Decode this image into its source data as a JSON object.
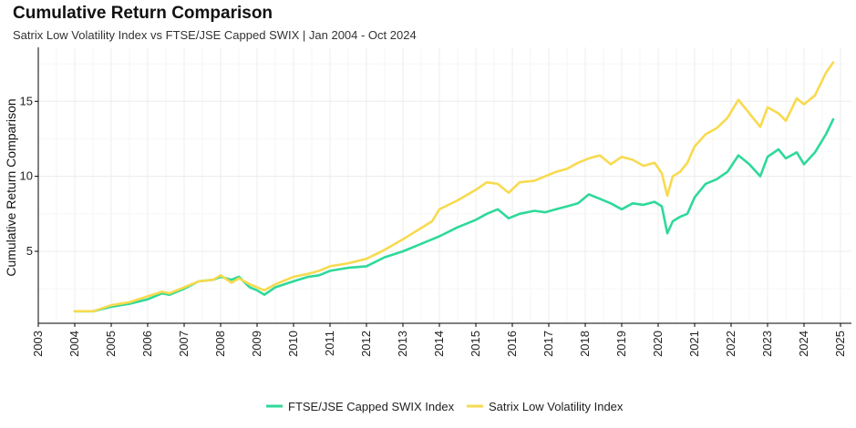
{
  "chart_data": {
    "type": "line",
    "title": "Cumulative Return Comparison",
    "subtitle": "Satrix Low Volatility Index vs FTSE/JSE Capped SWIX | Jan 2004 - Oct 2024",
    "xlabel": "",
    "ylabel": "Cumulative Return Comparison",
    "xlim": [
      2003,
      2025.3
    ],
    "ylim": [
      0.2,
      18.6
    ],
    "x_ticks": [
      "2003",
      "2004",
      "2005",
      "2006",
      "2007",
      "2008",
      "2009",
      "2010",
      "2011",
      "2012",
      "2013",
      "2014",
      "2015",
      "2016",
      "2017",
      "2018",
      "2019",
      "2020",
      "2021",
      "2022",
      "2023",
      "2024",
      "2025"
    ],
    "y_ticks": [
      "5",
      "10",
      "15"
    ],
    "grid": true,
    "legend_position": "bottom",
    "series": [
      {
        "name": "FTSE/JSE Capped SWIX Index",
        "color": "#2ed99a",
        "x": [
          2004.0,
          2004.5,
          2005.0,
          2005.5,
          2006.0,
          2006.4,
          2006.6,
          2007.0,
          2007.4,
          2007.8,
          2008.0,
          2008.3,
          2008.5,
          2008.8,
          2009.0,
          2009.2,
          2009.5,
          2010.0,
          2010.4,
          2010.7,
          2011.0,
          2011.5,
          2012.0,
          2012.5,
          2013.0,
          2013.4,
          2013.8,
          2014.0,
          2014.5,
          2015.0,
          2015.3,
          2015.6,
          2015.9,
          2016.2,
          2016.6,
          2016.9,
          2017.2,
          2017.5,
          2017.8,
          2018.1,
          2018.4,
          2018.7,
          2019.0,
          2019.3,
          2019.6,
          2019.9,
          2020.1,
          2020.25,
          2020.4,
          2020.6,
          2020.8,
          2021.0,
          2021.3,
          2021.6,
          2021.9,
          2022.2,
          2022.5,
          2022.8,
          2023.0,
          2023.3,
          2023.5,
          2023.8,
          2024.0,
          2024.3,
          2024.6,
          2024.8
        ],
        "values": [
          1.0,
          1.0,
          1.3,
          1.5,
          1.8,
          2.2,
          2.1,
          2.5,
          3.0,
          3.1,
          3.3,
          3.1,
          3.3,
          2.6,
          2.4,
          2.1,
          2.6,
          3.0,
          3.3,
          3.4,
          3.7,
          3.9,
          4.0,
          4.6,
          5.0,
          5.4,
          5.8,
          6.0,
          6.6,
          7.1,
          7.5,
          7.8,
          7.2,
          7.5,
          7.7,
          7.6,
          7.8,
          8.0,
          8.2,
          8.8,
          8.5,
          8.2,
          7.8,
          8.2,
          8.1,
          8.3,
          8.0,
          6.2,
          7.0,
          7.3,
          7.5,
          8.6,
          9.5,
          9.8,
          10.3,
          11.4,
          10.8,
          10.0,
          11.3,
          11.8,
          11.2,
          11.6,
          10.8,
          11.6,
          12.8,
          13.8
        ]
      },
      {
        "name": "Satrix Low Volatility Index",
        "color": "#f8da4e",
        "x": [
          2004.0,
          2004.5,
          2005.0,
          2005.5,
          2006.0,
          2006.4,
          2006.6,
          2007.0,
          2007.4,
          2007.8,
          2008.0,
          2008.3,
          2008.5,
          2008.8,
          2009.0,
          2009.2,
          2009.5,
          2010.0,
          2010.4,
          2010.7,
          2011.0,
          2011.5,
          2012.0,
          2012.5,
          2013.0,
          2013.4,
          2013.8,
          2014.0,
          2014.5,
          2015.0,
          2015.3,
          2015.6,
          2015.9,
          2016.2,
          2016.6,
          2016.9,
          2017.2,
          2017.5,
          2017.8,
          2018.1,
          2018.4,
          2018.7,
          2019.0,
          2019.3,
          2019.6,
          2019.9,
          2020.1,
          2020.25,
          2020.4,
          2020.6,
          2020.8,
          2021.0,
          2021.3,
          2021.6,
          2021.9,
          2022.2,
          2022.5,
          2022.8,
          2023.0,
          2023.3,
          2023.5,
          2023.8,
          2024.0,
          2024.3,
          2024.6,
          2024.8
        ],
        "values": [
          1.0,
          1.0,
          1.4,
          1.6,
          2.0,
          2.3,
          2.2,
          2.6,
          3.0,
          3.1,
          3.4,
          2.9,
          3.2,
          2.8,
          2.6,
          2.4,
          2.8,
          3.3,
          3.5,
          3.7,
          4.0,
          4.2,
          4.5,
          5.1,
          5.8,
          6.4,
          7.0,
          7.8,
          8.4,
          9.1,
          9.6,
          9.5,
          8.9,
          9.6,
          9.7,
          10.0,
          10.3,
          10.5,
          10.9,
          11.2,
          11.4,
          10.8,
          11.3,
          11.1,
          10.7,
          10.9,
          10.2,
          8.7,
          10.0,
          10.3,
          10.9,
          12.0,
          12.8,
          13.2,
          13.9,
          15.1,
          14.2,
          13.3,
          14.6,
          14.2,
          13.7,
          15.2,
          14.8,
          15.4,
          16.9,
          17.6
        ]
      }
    ]
  }
}
